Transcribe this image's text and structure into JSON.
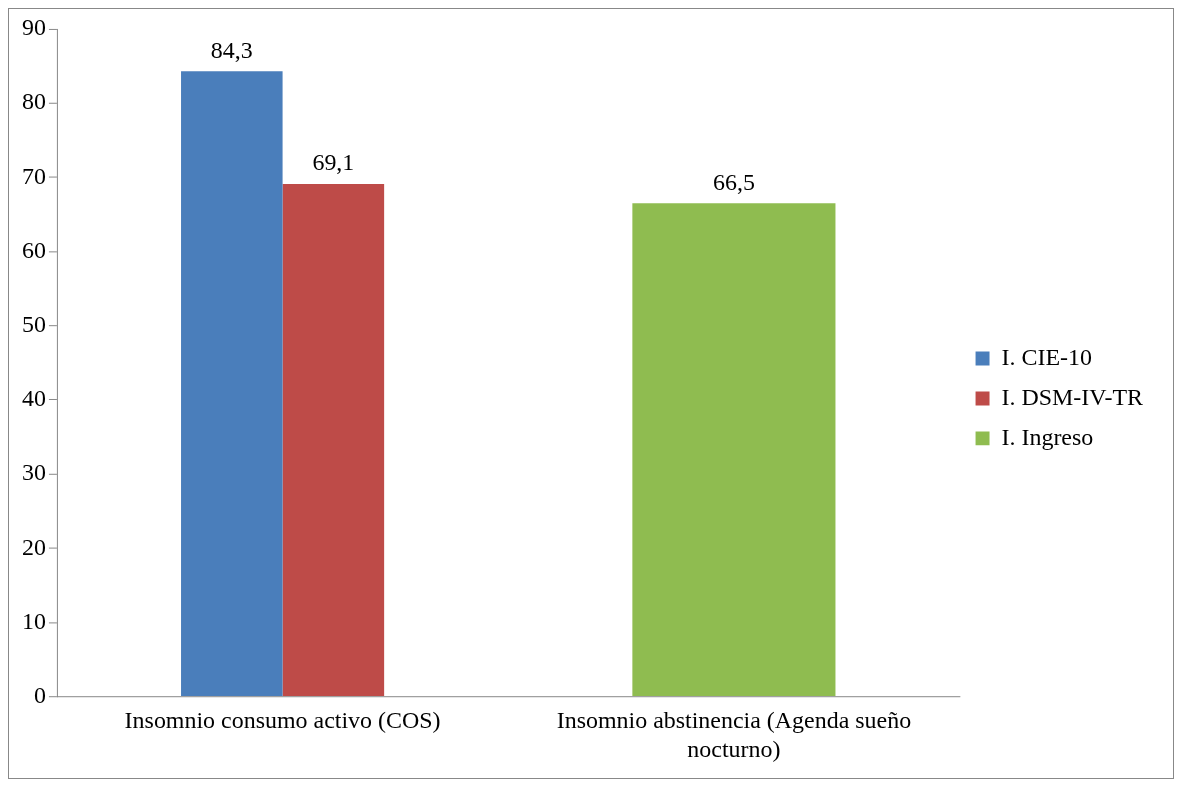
{
  "chart_data": {
    "type": "bar",
    "categories": [
      "Insomnio consumo activo (COS)",
      "Insomnio abstinencia (Agenda sueño nocturno)"
    ],
    "series": [
      {
        "name": "I. CIE-10",
        "color": "#4a7ebb",
        "values": [
          84.3,
          null
        ],
        "value_labels": [
          "84,3",
          null
        ]
      },
      {
        "name": "I. DSM-IV-TR",
        "color": "#be4b48",
        "values": [
          69.1,
          null
        ],
        "value_labels": [
          "69,1",
          null
        ]
      },
      {
        "name": "I. Ingreso",
        "color": "#8fbc50",
        "values": [
          null,
          66.5
        ],
        "value_labels": [
          null,
          "66,5"
        ]
      }
    ],
    "ylim": [
      0,
      90
    ],
    "yticks": [
      0,
      10,
      20,
      30,
      40,
      50,
      60,
      70,
      80,
      90
    ],
    "grid": false,
    "legend": "right"
  }
}
